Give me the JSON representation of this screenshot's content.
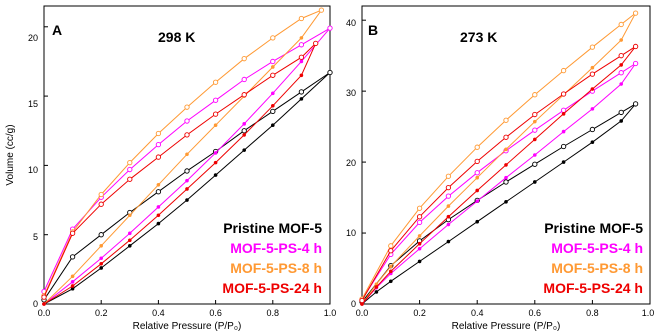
{
  "figure": {
    "panel_a": {
      "letter": "A",
      "temperature_label": "298 K",
      "xlabel": "Relative Pressure (P/P₀)",
      "ylabel": "Volume (cc/g)",
      "xticks": [
        "0.0",
        "0.2",
        "0.4",
        "0.6",
        "0.8",
        "1.0"
      ],
      "yticks": [
        "0",
        "5",
        "10",
        "15",
        "20"
      ]
    },
    "panel_b": {
      "letter": "B",
      "temperature_label": "273 K",
      "xlabel": "Relative Pressure (P/P₀)",
      "ylabel": "",
      "xticks": [
        "0.0",
        "0.2",
        "0.4",
        "0.6",
        "0.8",
        "1.0"
      ],
      "yticks": [
        "0",
        "10",
        "20",
        "30",
        "40"
      ]
    },
    "legend": [
      {
        "label": "Pristine MOF-5",
        "color": "#000000"
      },
      {
        "label": "MOF-5-PS-4 h",
        "color": "#ff00ff"
      },
      {
        "label": "MOF-5-PS-8 h",
        "color": "#ff9933"
      },
      {
        "label": "MOF-5-PS-24 h",
        "color": "#ee0000"
      }
    ]
  },
  "chart_data": [
    {
      "type": "line",
      "title": "298 K",
      "panel": "A",
      "xlabel": "Relative Pressure (P/P₀)",
      "ylabel": "Volume (cc/g)",
      "xlim": [
        0.0,
        1.0
      ],
      "ylim": [
        0,
        21.5
      ],
      "grid": false,
      "legend_position": "bottom-right",
      "series": [
        {
          "name": "Pristine MOF-5",
          "color": "#000000",
          "adsorption": [
            [
              0.0,
              0
            ],
            [
              0.1,
              1.1
            ],
            [
              0.2,
              2.6
            ],
            [
              0.3,
              4.2
            ],
            [
              0.4,
              5.8
            ],
            [
              0.5,
              7.5
            ],
            [
              0.6,
              9.3
            ],
            [
              0.7,
              11.1
            ],
            [
              0.8,
              12.9
            ],
            [
              0.9,
              14.8
            ],
            [
              1.0,
              16.7
            ]
          ],
          "desorption": [
            [
              1.0,
              16.7
            ],
            [
              0.9,
              15.3
            ],
            [
              0.8,
              13.9
            ],
            [
              0.7,
              12.5
            ],
            [
              0.6,
              11.0
            ],
            [
              0.5,
              9.6
            ],
            [
              0.4,
              8.1
            ],
            [
              0.3,
              6.6
            ],
            [
              0.2,
              5.0
            ],
            [
              0.1,
              3.4
            ],
            [
              0.0,
              0.3
            ]
          ]
        },
        {
          "name": "MOF-5-PS-4 h",
          "color": "#ff00ff",
          "adsorption": [
            [
              0.0,
              0
            ],
            [
              0.1,
              1.6
            ],
            [
              0.2,
              3.3
            ],
            [
              0.3,
              5.1
            ],
            [
              0.4,
              7.0
            ],
            [
              0.5,
              8.9
            ],
            [
              0.6,
              10.9
            ],
            [
              0.7,
              13.0
            ],
            [
              0.8,
              15.2
            ],
            [
              0.9,
              17.5
            ],
            [
              1.0,
              19.9
            ]
          ],
          "desorption": [
            [
              1.0,
              19.9
            ],
            [
              0.9,
              18.7
            ],
            [
              0.8,
              17.5
            ],
            [
              0.7,
              16.2
            ],
            [
              0.6,
              14.7
            ],
            [
              0.5,
              13.2
            ],
            [
              0.4,
              11.5
            ],
            [
              0.3,
              9.7
            ],
            [
              0.2,
              7.7
            ],
            [
              0.1,
              5.4
            ],
            [
              0.0,
              0.9
            ]
          ]
        },
        {
          "name": "MOF-5-PS-8 h",
          "color": "#ff9933",
          "adsorption": [
            [
              0.0,
              0
            ],
            [
              0.1,
              2.0
            ],
            [
              0.2,
              4.2
            ],
            [
              0.3,
              6.4
            ],
            [
              0.4,
              8.6
            ],
            [
              0.5,
              10.8
            ],
            [
              0.6,
              12.9
            ],
            [
              0.7,
              15.0
            ],
            [
              0.8,
              17.1
            ],
            [
              0.9,
              19.2
            ],
            [
              0.97,
              21.2
            ]
          ],
          "desorption": [
            [
              0.97,
              21.2
            ],
            [
              0.9,
              20.6
            ],
            [
              0.8,
              19.2
            ],
            [
              0.7,
              17.7
            ],
            [
              0.6,
              16.0
            ],
            [
              0.5,
              14.2
            ],
            [
              0.4,
              12.3
            ],
            [
              0.3,
              10.2
            ],
            [
              0.2,
              7.9
            ],
            [
              0.1,
              5.2
            ],
            [
              0.0,
              0.6
            ]
          ]
        },
        {
          "name": "MOF-5-PS-24 h",
          "color": "#ee0000",
          "adsorption": [
            [
              0.0,
              0
            ],
            [
              0.1,
              1.3
            ],
            [
              0.2,
              2.9
            ],
            [
              0.3,
              4.6
            ],
            [
              0.4,
              6.4
            ],
            [
              0.5,
              8.3
            ],
            [
              0.6,
              10.2
            ],
            [
              0.7,
              12.2
            ],
            [
              0.8,
              14.3
            ],
            [
              0.9,
              16.5
            ],
            [
              0.95,
              18.8
            ]
          ],
          "desorption": [
            [
              0.95,
              18.8
            ],
            [
              0.9,
              17.8
            ],
            [
              0.8,
              16.5
            ],
            [
              0.7,
              15.1
            ],
            [
              0.6,
              13.7
            ],
            [
              0.5,
              12.2
            ],
            [
              0.4,
              10.6
            ],
            [
              0.3,
              9.0
            ],
            [
              0.2,
              7.2
            ],
            [
              0.1,
              5.1
            ],
            [
              0.0,
              0.5
            ]
          ]
        }
      ]
    },
    {
      "type": "line",
      "title": "273 K",
      "panel": "B",
      "xlabel": "Relative Pressure (P/P₀)",
      "ylabel": "",
      "xlim": [
        0.0,
        1.0
      ],
      "ylim": [
        0,
        42
      ],
      "grid": false,
      "legend_position": "bottom-right",
      "series": [
        {
          "name": "Pristine MOF-5",
          "color": "#000000",
          "adsorption": [
            [
              0.0,
              0
            ],
            [
              0.05,
              1.7
            ],
            [
              0.1,
              3.2
            ],
            [
              0.2,
              6.0
            ],
            [
              0.3,
              8.8
            ],
            [
              0.4,
              11.6
            ],
            [
              0.5,
              14.4
            ],
            [
              0.6,
              17.2
            ],
            [
              0.7,
              20.0
            ],
            [
              0.8,
              22.8
            ],
            [
              0.9,
              25.8
            ],
            [
              0.95,
              28.2
            ]
          ],
          "desorption": [
            [
              0.95,
              28.2
            ],
            [
              0.9,
              27.0
            ],
            [
              0.8,
              24.6
            ],
            [
              0.7,
              22.2
            ],
            [
              0.6,
              19.7
            ],
            [
              0.5,
              17.2
            ],
            [
              0.4,
              14.6
            ],
            [
              0.3,
              11.9
            ],
            [
              0.2,
              8.9
            ],
            [
              0.1,
              5.4
            ],
            [
              0.0,
              0.3
            ]
          ]
        },
        {
          "name": "MOF-5-PS-4 h",
          "color": "#ff00ff",
          "adsorption": [
            [
              0.0,
              0
            ],
            [
              0.05,
              2.3
            ],
            [
              0.1,
              4.3
            ],
            [
              0.2,
              7.8
            ],
            [
              0.3,
              11.2
            ],
            [
              0.4,
              14.5
            ],
            [
              0.5,
              17.8
            ],
            [
              0.6,
              21.0
            ],
            [
              0.7,
              24.3
            ],
            [
              0.8,
              27.5
            ],
            [
              0.9,
              31.0
            ],
            [
              0.95,
              33.9
            ]
          ],
          "desorption": [
            [
              0.95,
              33.9
            ],
            [
              0.9,
              32.6
            ],
            [
              0.8,
              30.0
            ],
            [
              0.7,
              27.3
            ],
            [
              0.6,
              24.5
            ],
            [
              0.5,
              21.6
            ],
            [
              0.4,
              18.5
            ],
            [
              0.3,
              15.2
            ],
            [
              0.2,
              11.5
            ],
            [
              0.1,
              7.0
            ],
            [
              0.0,
              0.6
            ]
          ]
        },
        {
          "name": "MOF-5-PS-8 h",
          "color": "#ff9933",
          "adsorption": [
            [
              0.0,
              0
            ],
            [
              0.05,
              2.8
            ],
            [
              0.1,
              5.3
            ],
            [
              0.2,
              9.6
            ],
            [
              0.3,
              13.8
            ],
            [
              0.4,
              17.8
            ],
            [
              0.5,
              21.8
            ],
            [
              0.6,
              25.7
            ],
            [
              0.7,
              29.5
            ],
            [
              0.8,
              33.3
            ],
            [
              0.9,
              37.2
            ],
            [
              0.95,
              41.0
            ]
          ],
          "desorption": [
            [
              0.95,
              41.0
            ],
            [
              0.9,
              39.4
            ],
            [
              0.8,
              36.2
            ],
            [
              0.7,
              32.9
            ],
            [
              0.6,
              29.5
            ],
            [
              0.5,
              25.9
            ],
            [
              0.4,
              22.1
            ],
            [
              0.3,
              18.0
            ],
            [
              0.2,
              13.5
            ],
            [
              0.1,
              8.2
            ],
            [
              0.0,
              0.7
            ]
          ]
        },
        {
          "name": "MOF-5-PS-24 h",
          "color": "#ee0000",
          "adsorption": [
            [
              0.0,
              0
            ],
            [
              0.05,
              2.4
            ],
            [
              0.1,
              4.6
            ],
            [
              0.2,
              8.5
            ],
            [
              0.3,
              12.3
            ],
            [
              0.4,
              16.0
            ],
            [
              0.5,
              19.6
            ],
            [
              0.6,
              23.2
            ],
            [
              0.7,
              26.8
            ],
            [
              0.8,
              30.3
            ],
            [
              0.9,
              33.7
            ],
            [
              0.95,
              36.3
            ]
          ],
          "desorption": [
            [
              0.95,
              36.3
            ],
            [
              0.9,
              35.0
            ],
            [
              0.8,
              32.4
            ],
            [
              0.7,
              29.6
            ],
            [
              0.6,
              26.7
            ],
            [
              0.5,
              23.5
            ],
            [
              0.4,
              20.1
            ],
            [
              0.3,
              16.4
            ],
            [
              0.2,
              12.3
            ],
            [
              0.1,
              7.5
            ],
            [
              0.0,
              0.5
            ]
          ]
        }
      ]
    }
  ]
}
